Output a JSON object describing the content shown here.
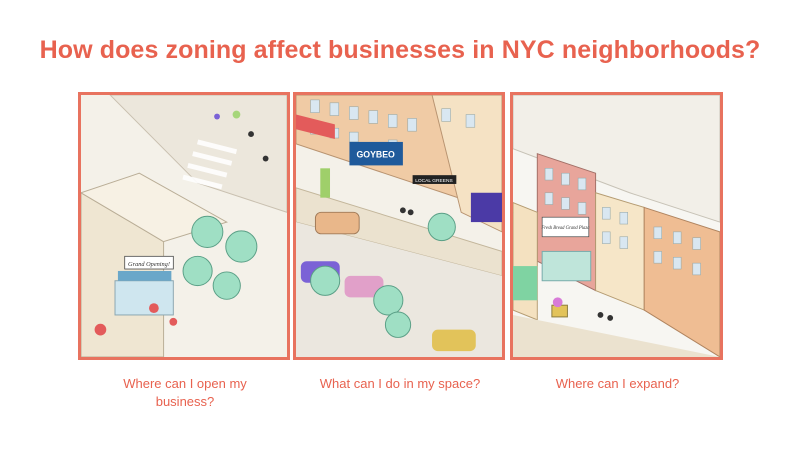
{
  "title": "How does zoning affect businesses in NYC neighborhoods?",
  "colors": {
    "accent": "#e8624f",
    "frame": "#e8735f"
  },
  "panels": [
    {
      "caption": "Where can I open my business?",
      "sign_text": "Grand Opening!"
    },
    {
      "caption": "What can I do in my space?",
      "sign_text": "GOYBEO",
      "sign_text_2": "LOCAL GREENS"
    },
    {
      "caption": "Where can I expand?",
      "sign_text": "Fresh Bread Grand Plaza"
    }
  ]
}
